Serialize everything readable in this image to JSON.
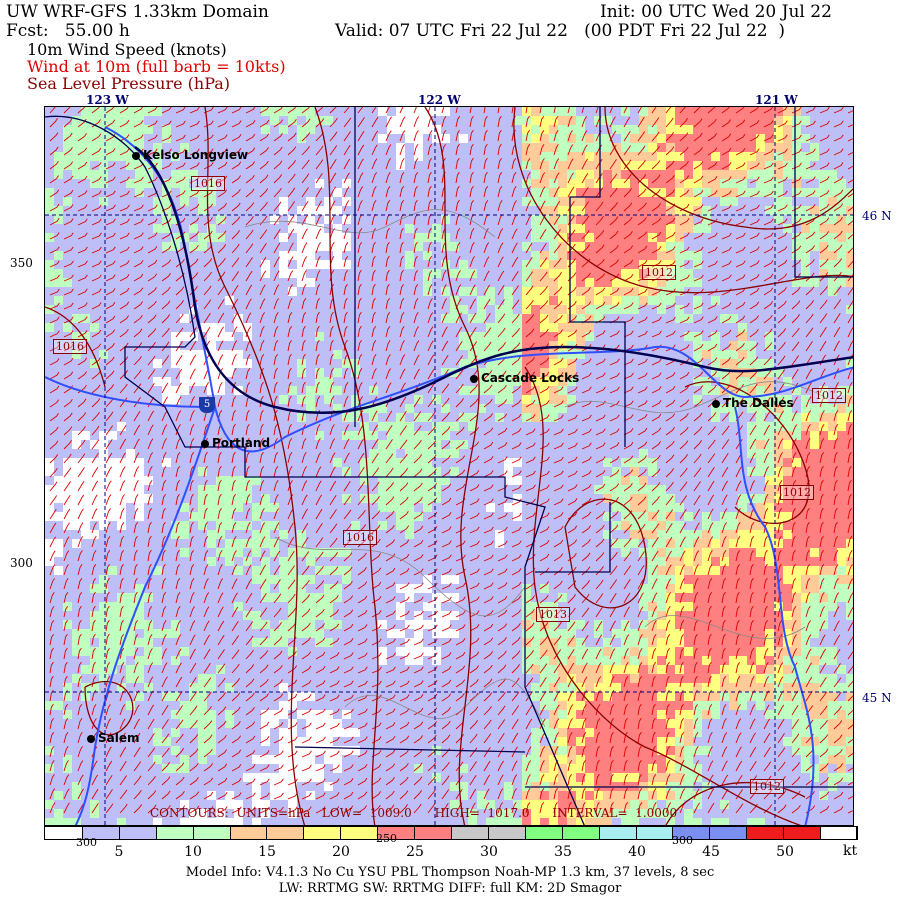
{
  "header": {
    "title": "UW WRF-GFS 1.33km Domain",
    "init": "Init: 00 UTC Wed 20 Jul 22",
    "fcst": "Fcst:   55.00 h",
    "valid": "Valid: 07 UTC Fri 22 Jul 22   (00 PDT Fri 22 Jul 22  )",
    "field1": "10m Wind Speed (knots)",
    "field2": "Wind at 10m (full barb = 10kts)",
    "field3": "Sea Level Pressure (hPa)"
  },
  "colors": {
    "field2": "#e00000",
    "field3": "#8b0000",
    "barbs": "#e00000",
    "contours": "#8b0000",
    "rivers": "#3050ff",
    "borders": "#000050"
  },
  "axes": {
    "lon_labels": [
      "123 W",
      "122 W",
      "121 W"
    ],
    "lat_labels": [
      "46 N",
      "45 N"
    ],
    "left_labels": [
      "350",
      "300"
    ]
  },
  "cities": [
    {
      "name": "Kelso Longview"
    },
    {
      "name": "Cascade Locks"
    },
    {
      "name": "The Dalles"
    },
    {
      "name": "Portland"
    },
    {
      "name": "Salem"
    }
  ],
  "interstate": "5",
  "pressure_labels": [
    "1016",
    "1012",
    "1016",
    "1012",
    "1012",
    "1016",
    "1013",
    "1012"
  ],
  "terrain_labels": [
    "300",
    "250",
    "300"
  ],
  "contour_info": "CONTOURS:  UNITS=hPa   LOW=  1009.0      HIGH=  1017.0      INTERVAL=  1.0000",
  "legend": {
    "unit": "kt",
    "ticks": [
      "5",
      "10",
      "15",
      "20",
      "25",
      "30",
      "35",
      "40",
      "45",
      "50"
    ],
    "bins": [
      {
        "color": "#ffffff"
      },
      {
        "color": "#bfbff7"
      },
      {
        "color": "#bfbff7"
      },
      {
        "color": "#bfffbf"
      },
      {
        "color": "#bfffbf"
      },
      {
        "color": "#ffcc99"
      },
      {
        "color": "#ffcc99"
      },
      {
        "color": "#ffff80"
      },
      {
        "color": "#ffff80"
      },
      {
        "color": "#ff8080"
      },
      {
        "color": "#ff8080"
      },
      {
        "color": "#c8c8c8"
      },
      {
        "color": "#c8c8c8"
      },
      {
        "color": "#80ff80"
      },
      {
        "color": "#80ff80"
      },
      {
        "color": "#a8eeee"
      },
      {
        "color": "#a8eeee"
      },
      {
        "color": "#7b8ff0"
      },
      {
        "color": "#7b8ff0"
      },
      {
        "color": "#ee1c1c"
      },
      {
        "color": "#ee1c1c"
      },
      {
        "color": "#ffffff"
      }
    ]
  },
  "footer": {
    "line1": "Model Info: V4.1.3    No Cu    YSU PBL   Thompson     Noah-MP    1.3 km,   37 levels,     8 sec",
    "line2": "LW: RRTMG SW: RRTMG    DIFF: full    KM: 2D Smagor"
  }
}
